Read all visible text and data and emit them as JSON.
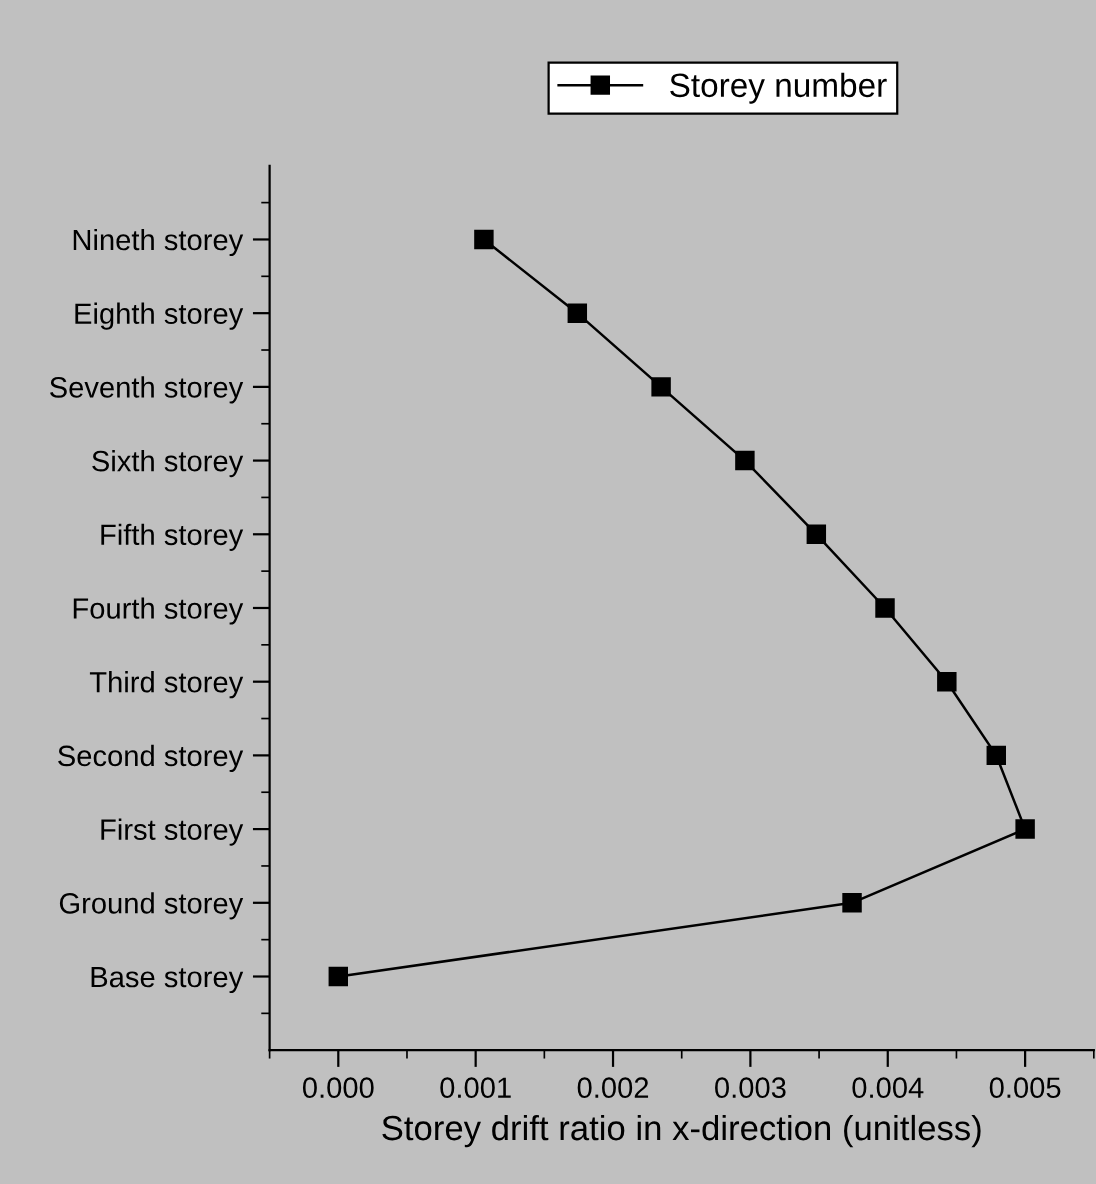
{
  "chart_data": {
    "type": "line",
    "orientation": "horizontal",
    "xlabel": "Storey drift ratio in x-direction (unitless)",
    "categories": [
      "Nineth storey",
      "Eighth storey",
      "Seventh storey",
      "Sixth storey",
      "Fifth storey",
      "Fourth storey",
      "Third storey",
      "Second storey",
      "First storey",
      "Ground storey",
      "Base storey"
    ],
    "series": [
      {
        "name": "Storey number",
        "color": "#000000",
        "values": [
          0.00106,
          0.00174,
          0.00235,
          0.00296,
          0.00348,
          0.00398,
          0.00443,
          0.00479,
          0.005,
          0.00374,
          0.0
        ]
      }
    ],
    "xlim": [
      -0.0005,
      0.0055
    ],
    "xticks": [
      {
        "value": 0,
        "label": "0.000"
      },
      0.001,
      0.002,
      0.003,
      0.004,
      0.005
    ],
    "marker": "square",
    "line_style": "solid",
    "legend": "top",
    "grid": false
  }
}
